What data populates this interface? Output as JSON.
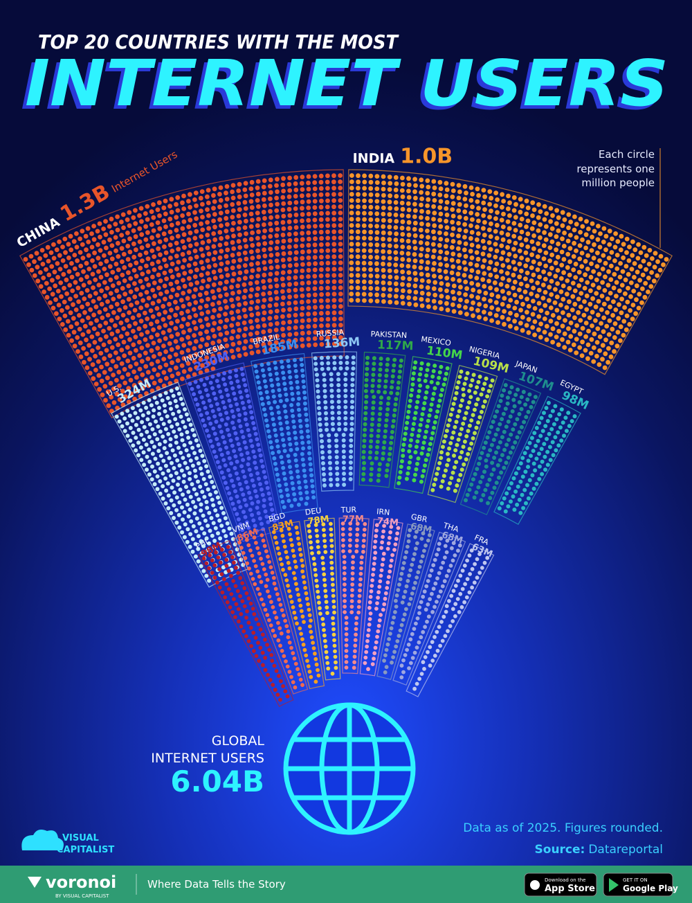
{
  "chart_data": {
    "type": "dot-fan",
    "title": "TOP 20 COUNTRIES WITH THE MOST",
    "subtitle": "INTERNET USERS",
    "annotation": "Internet Users",
    "note": [
      "Each circle",
      "represents one",
      "million people"
    ],
    "categories": [
      "CHINA",
      "INDIA",
      "U.S.",
      "INDONESIA",
      "BRAZIL",
      "RUSSIA",
      "PAKISTAN",
      "MEXICO",
      "NIGERIA",
      "JAPAN",
      "EGYPT",
      "PHL",
      "VNM",
      "BGD",
      "DEU",
      "TUR",
      "IRN",
      "GBR",
      "THA",
      "FRA"
    ],
    "values": [
      1300,
      1000,
      324,
      230,
      185,
      136,
      117,
      110,
      109,
      107,
      98,
      98,
      86,
      83,
      78,
      77,
      74,
      68,
      68,
      63
    ],
    "value_labels": [
      "1.3B",
      "1.0B",
      "324M",
      "230M",
      "185M",
      "136M",
      "117M",
      "110M",
      "109M",
      "107M",
      "98M",
      "98M",
      "86M",
      "83M",
      "78M",
      "77M",
      "74M",
      "68M",
      "68M",
      "63M"
    ],
    "colors": [
      "#e8552a",
      "#f7952a",
      "#c4ecf8",
      "#4f5ff2",
      "#3a8ff0",
      "#8ec8f5",
      "#2fa84a",
      "#45d64a",
      "#b8e04a",
      "#1f8e8e",
      "#2ab8c4",
      "#b81e2a",
      "#f06a50",
      "#f5a020",
      "#f5d040",
      "#f58a8a",
      "#f5a0c0",
      "#8a9ac0",
      "#a0a8e0",
      "#c0c8f0"
    ]
  },
  "total": {
    "lines": [
      "GLOBAL",
      "INTERNET USERS"
    ],
    "text": "6.04B"
  },
  "footnote": "Data as of 2025. Figures rounded.",
  "source_label": "Source:",
  "source": "Datareportal",
  "branding": {
    "logo": [
      "VISUAL",
      "CAPITALIST"
    ],
    "voronoi": "voronoi",
    "by": "BY VISUAL CAPITALIST",
    "tagline": "Where Data Tells the Story",
    "app_store": [
      "Download on the",
      "App Store"
    ],
    "google_play": [
      "GET IT ON",
      "Google Play"
    ]
  }
}
